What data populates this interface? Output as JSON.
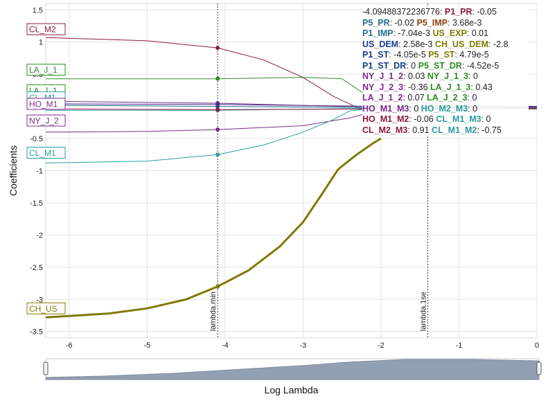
{
  "chart_data": {
    "type": "line",
    "xlabel": "Log Lambda",
    "ylabel": "Coefficients",
    "xlim": [
      -6.3,
      0
    ],
    "ylim": [
      -3.6,
      1.6
    ],
    "x_ticks": [
      "-6",
      "-5",
      "-4",
      "-3",
      "-2",
      "-1",
      "0"
    ],
    "y_ticks": [
      "1.5",
      "1",
      "0.5",
      "0",
      "-0.5",
      "-1",
      "-1.5",
      "-2",
      "-2.5",
      "-3",
      "-3.5"
    ],
    "vlines": [
      {
        "label": "lambda.min",
        "x": -4.095
      },
      {
        "label": "lambda.1se",
        "x": -1.4
      }
    ],
    "series": [
      {
        "label": "CL_M2",
        "color": "#8b1a3a",
        "width": 1,
        "points": [
          [
            -6.3,
            1.07
          ],
          [
            -5,
            1.02
          ],
          [
            -4.095,
            0.91
          ],
          [
            -3.5,
            0.72
          ],
          [
            -3,
            0.45
          ],
          [
            -2.6,
            0.15
          ],
          [
            -2.3,
            -0.02
          ],
          [
            -2,
            -0.04
          ],
          [
            0,
            -0.04
          ]
        ]
      },
      {
        "label": "LA_J_1",
        "color": "#2e8b22",
        "width": 1,
        "points": [
          [
            -6.3,
            0.43
          ],
          [
            -5,
            0.43
          ],
          [
            -4.095,
            0.43
          ],
          [
            -3,
            0.45
          ],
          [
            -2.5,
            0.43
          ],
          [
            -2,
            0.02
          ],
          [
            0,
            0.0
          ]
        ]
      },
      {
        "label": "CL_M1",
        "color": "#2a9d9d",
        "width": 1,
        "points": [
          [
            -6.3,
            -0.06
          ],
          [
            -4.095,
            -0.06
          ],
          [
            -2,
            -0.03
          ],
          [
            0,
            -0.02
          ]
        ]
      },
      {
        "label": "NY_J_2",
        "color": "#7a2c8c",
        "width": 1,
        "points": [
          [
            -6.3,
            -0.4
          ],
          [
            -5,
            -0.39
          ],
          [
            -4.095,
            -0.36
          ],
          [
            -3,
            -0.3
          ],
          [
            -2.4,
            -0.18
          ],
          [
            -2,
            -0.05
          ],
          [
            0,
            -0.02
          ]
        ]
      },
      {
        "label": "CL_M1",
        "color": "#2a9d9d",
        "width": 1,
        "points": [
          [
            -6.3,
            -0.88
          ],
          [
            -5,
            -0.85
          ],
          [
            -4.095,
            -0.75
          ],
          [
            -3.5,
            -0.6
          ],
          [
            -3,
            -0.4
          ],
          [
            -2.6,
            -0.2
          ],
          [
            -2.4,
            -0.07
          ],
          [
            -2,
            -0.02
          ],
          [
            0,
            -0.02
          ]
        ]
      },
      {
        "label": "CH_US",
        "color": "#7f7a00",
        "width": 3,
        "points": [
          [
            -6.3,
            -3.28
          ],
          [
            -5.5,
            -3.22
          ],
          [
            -5,
            -3.14
          ],
          [
            -4.5,
            -3.0
          ],
          [
            -4.095,
            -2.8
          ],
          [
            -3.7,
            -2.55
          ],
          [
            -3.3,
            -2.18
          ],
          [
            -3,
            -1.8
          ],
          [
            -2.75,
            -1.35
          ],
          [
            -2.55,
            -0.98
          ],
          [
            -2.45,
            -0.88
          ],
          [
            -2.3,
            -0.74
          ],
          [
            -2.1,
            -0.57
          ],
          [
            -2,
            -0.5
          ]
        ]
      },
      {
        "label": "",
        "color": "#7a2c8c",
        "width": 1,
        "points": [
          [
            -6.3,
            0.08
          ],
          [
            -4.095,
            0.05
          ],
          [
            -2.5,
            0.0
          ],
          [
            0,
            -0.01
          ]
        ]
      },
      {
        "label": "",
        "color": "#1e6e8c",
        "width": 1,
        "points": [
          [
            -6.3,
            0.02
          ],
          [
            -4.095,
            0.0
          ],
          [
            -2,
            -0.02
          ],
          [
            0,
            -0.02
          ]
        ]
      },
      {
        "label": "",
        "color": "#8b1a3a",
        "width": 1,
        "points": [
          [
            -6.3,
            -0.04
          ],
          [
            -4.095,
            -0.05
          ],
          [
            -2,
            -0.04
          ],
          [
            0,
            -0.03
          ]
        ]
      },
      {
        "label": "",
        "color": "#4a2c8c",
        "width": 1,
        "points": [
          [
            -6.3,
            0.04
          ],
          [
            -4.095,
            0.03
          ],
          [
            -2,
            0.0
          ],
          [
            0,
            0.0
          ]
        ]
      }
    ],
    "end_labels": [
      {
        "text": "CL_M2",
        "color": "#8b1a3a",
        "y": 1.2
      },
      {
        "text": "LA_J_1",
        "color": "#2e8b22",
        "y": 0.57
      },
      {
        "text": "LA_J_1",
        "color": "#2e8b22",
        "y": 0.25
      },
      {
        "text": "CL_M1",
        "color": "#2a9d9d",
        "y": 0.14
      },
      {
        "text": "HO_M1",
        "color": "#7a2c8c",
        "y": 0.04
      },
      {
        "text": "NY_J_2",
        "color": "#7a2c8c",
        "y": -0.22
      },
      {
        "text": "CL_M1",
        "color": "#2a9d9d",
        "y": -0.72
      },
      {
        "text": "CH_US",
        "color": "#7f7a00",
        "y": -3.14
      }
    ],
    "tooltip": [
      [
        {
          "k": "",
          "v": "-4.09488372236776:",
          "c": "#222"
        },
        {
          "k": "P1_PR",
          "v": ": -0.05",
          "c": "#8b1a3a"
        }
      ],
      [
        {
          "k": "P5_PR",
          "v": ": -0.02",
          "c": "#1e6e8c"
        },
        {
          "k": "P5_IMP",
          "v": ": 3.68e-3",
          "c": "#8b4513"
        }
      ],
      [
        {
          "k": "P1_IMP",
          "v": ": -7.04e-3",
          "c": "#1e6e8c"
        },
        {
          "k": "US_EXP",
          "v": ": 0.01",
          "c": "#7f7a00"
        }
      ],
      [
        {
          "k": "US_DEM",
          "v": ": 2.58e-3",
          "c": "#1a3a8c"
        },
        {
          "k": "CH_US_DEM",
          "v": ": -2.8",
          "c": "#7f7a00"
        }
      ],
      [
        {
          "k": "P1_ST",
          "v": ": -4.05e-5",
          "c": "#1a3a8c"
        },
        {
          "k": "P5_ST",
          "v": ": 4.79e-5",
          "c": "#7f7a00"
        }
      ],
      [
        {
          "k": "P1_ST_DR",
          "v": ": 0",
          "c": "#1a3a8c"
        },
        {
          "k": "P5_ST_DR",
          "v": ": -4.52e-5",
          "c": "#2e8b22"
        }
      ],
      [
        {
          "k": "NY_J_1_2",
          "v": ": 0.03",
          "c": "#7a2c8c"
        },
        {
          "k": "NY_J_1_3",
          "v": ": 0",
          "c": "#2e8b22"
        }
      ],
      [
        {
          "k": "NY_J_2_3",
          "v": ": -0.36",
          "c": "#7a2c8c"
        },
        {
          "k": "LA_J_1_3",
          "v": ": 0.43",
          "c": "#2e8b22"
        }
      ],
      [
        {
          "k": "LA_J_1_2",
          "v": ": 0.07",
          "c": "#7a2c8c"
        },
        {
          "k": "LA_J_2_3",
          "v": ": 0",
          "c": "#2e8b22"
        }
      ],
      [
        {
          "k": "HO_M1_M3",
          "v": ": 0",
          "c": "#7a2c8c"
        },
        {
          "k": "HO_M2_M3",
          "v": ": 0",
          "c": "#2a9d9d"
        }
      ],
      [
        {
          "k": "HO_M1_M2",
          "v": ": -0.06",
          "c": "#8b1a3a"
        },
        {
          "k": "CL_M1_M3",
          "v": ": 0",
          "c": "#2a9d9d"
        }
      ],
      [
        {
          "k": "CL_M2_M3",
          "v": ": 0.91",
          "c": "#8b1a3a"
        },
        {
          "k": "CL_M1_M2",
          "v": ": -0.75",
          "c": "#2a9d9d"
        }
      ]
    ],
    "range_slider": {
      "from": -6.3,
      "to": 0,
      "fill": "#8090a8"
    }
  }
}
